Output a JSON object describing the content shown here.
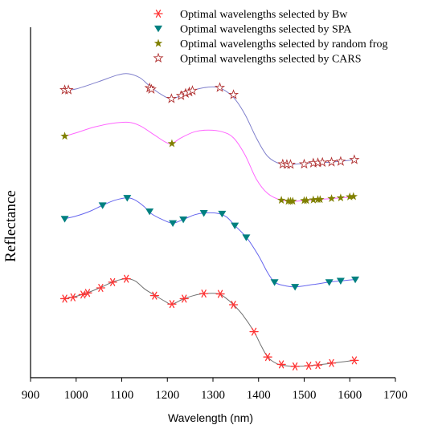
{
  "chart_data": {
    "type": "line",
    "title": "",
    "xlabel": "Wavelength (nm)",
    "ylabel": "Reflectance",
    "xlim": [
      900,
      1700
    ],
    "xticks": [
      900,
      1000,
      1100,
      1200,
      1300,
      1400,
      1500,
      1600,
      1700
    ],
    "grid": false,
    "legend_position": "top-right",
    "series": [
      {
        "name": "Optimal wavelengths selected by CARS",
        "color": "#8080cc",
        "marker": "open-star",
        "marker_color": "#b03030",
        "curve": [
          [
            975,
            0.832
          ],
          [
            1000,
            0.835
          ],
          [
            1050,
            0.857
          ],
          [
            1090,
            0.876
          ],
          [
            1115,
            0.88
          ],
          [
            1140,
            0.868
          ],
          [
            1160,
            0.845
          ],
          [
            1185,
            0.82
          ],
          [
            1210,
            0.806
          ],
          [
            1240,
            0.822
          ],
          [
            1270,
            0.836
          ],
          [
            1300,
            0.841
          ],
          [
            1320,
            0.835
          ],
          [
            1345,
            0.81
          ],
          [
            1370,
            0.76
          ],
          [
            1395,
            0.69
          ],
          [
            1420,
            0.635
          ],
          [
            1450,
            0.612
          ],
          [
            1480,
            0.612
          ],
          [
            1520,
            0.616
          ],
          [
            1560,
            0.618
          ],
          [
            1590,
            0.622
          ],
          [
            1610,
            0.625
          ]
        ],
        "points": [
          [
            975,
            0.832
          ],
          [
            983,
            0.832
          ],
          [
            1161,
            0.838
          ],
          [
            1165,
            0.834
          ],
          [
            1209,
            0.806
          ],
          [
            1230,
            0.815
          ],
          [
            1240,
            0.822
          ],
          [
            1248,
            0.826
          ],
          [
            1255,
            0.83
          ],
          [
            1315,
            0.839
          ],
          [
            1345,
            0.818
          ],
          [
            1453,
            0.612
          ],
          [
            1462,
            0.611
          ],
          [
            1470,
            0.611
          ],
          [
            1500,
            0.612
          ],
          [
            1520,
            0.615
          ],
          [
            1530,
            0.616
          ],
          [
            1540,
            0.617
          ],
          [
            1560,
            0.618
          ],
          [
            1580,
            0.62
          ],
          [
            1610,
            0.625
          ]
        ]
      },
      {
        "name": "Optimal wavelengths selected by random frog",
        "color": "#ff66ff",
        "marker": "filled-star",
        "marker_color": "#808000",
        "curve": [
          [
            975,
            0.695
          ],
          [
            1000,
            0.705
          ],
          [
            1040,
            0.722
          ],
          [
            1080,
            0.733
          ],
          [
            1115,
            0.736
          ],
          [
            1140,
            0.726
          ],
          [
            1170,
            0.7
          ],
          [
            1195,
            0.678
          ],
          [
            1210,
            0.673
          ],
          [
            1230,
            0.69
          ],
          [
            1260,
            0.708
          ],
          [
            1290,
            0.713
          ],
          [
            1320,
            0.708
          ],
          [
            1345,
            0.69
          ],
          [
            1370,
            0.64
          ],
          [
            1395,
            0.568
          ],
          [
            1420,
            0.525
          ],
          [
            1450,
            0.505
          ],
          [
            1480,
            0.502
          ],
          [
            1520,
            0.506
          ],
          [
            1560,
            0.51
          ],
          [
            1590,
            0.513
          ],
          [
            1610,
            0.516
          ]
        ],
        "points": [
          [
            975,
            0.695
          ],
          [
            1210,
            0.673
          ],
          [
            1450,
            0.505
          ],
          [
            1465,
            0.502
          ],
          [
            1470,
            0.502
          ],
          [
            1475,
            0.502
          ],
          [
            1500,
            0.504
          ],
          [
            1505,
            0.504
          ],
          [
            1520,
            0.506
          ],
          [
            1530,
            0.507
          ],
          [
            1535,
            0.507
          ],
          [
            1560,
            0.51
          ],
          [
            1580,
            0.512
          ],
          [
            1600,
            0.515
          ],
          [
            1608,
            0.516
          ]
        ]
      },
      {
        "name": "Optimal wavelengths selected by SPA",
        "color": "#6666ee",
        "marker": "triangle-down",
        "marker_color": "#008080",
        "curve": [
          [
            975,
            0.45
          ],
          [
            1000,
            0.458
          ],
          [
            1030,
            0.472
          ],
          [
            1058,
            0.49
          ],
          [
            1085,
            0.505
          ],
          [
            1112,
            0.512
          ],
          [
            1130,
            0.505
          ],
          [
            1150,
            0.485
          ],
          [
            1165,
            0.465
          ],
          [
            1190,
            0.447
          ],
          [
            1212,
            0.437
          ],
          [
            1235,
            0.448
          ],
          [
            1260,
            0.462
          ],
          [
            1280,
            0.467
          ],
          [
            1310,
            0.466
          ],
          [
            1330,
            0.455
          ],
          [
            1348,
            0.43
          ],
          [
            1375,
            0.392
          ],
          [
            1400,
            0.34
          ],
          [
            1420,
            0.29
          ],
          [
            1435,
            0.262
          ],
          [
            1455,
            0.252
          ],
          [
            1480,
            0.248
          ],
          [
            1520,
            0.255
          ],
          [
            1560,
            0.263
          ],
          [
            1590,
            0.267
          ],
          [
            1612,
            0.27
          ]
        ],
        "points": [
          [
            975,
            0.45
          ],
          [
            1058,
            0.49
          ],
          [
            1112,
            0.512
          ],
          [
            1161,
            0.472
          ],
          [
            1212,
            0.437
          ],
          [
            1235,
            0.448
          ],
          [
            1280,
            0.467
          ],
          [
            1320,
            0.465
          ],
          [
            1348,
            0.43
          ],
          [
            1373,
            0.395
          ],
          [
            1435,
            0.262
          ],
          [
            1480,
            0.248
          ],
          [
            1555,
            0.262
          ],
          [
            1580,
            0.266
          ],
          [
            1612,
            0.27
          ]
        ]
      },
      {
        "name": "Optimal wavelengths selected by Bw",
        "color": "#707070",
        "marker": "asterisk",
        "marker_color": "#ff3333",
        "curve": [
          [
            975,
            0.213
          ],
          [
            1000,
            0.22
          ],
          [
            1030,
            0.233
          ],
          [
            1060,
            0.25
          ],
          [
            1085,
            0.265
          ],
          [
            1112,
            0.272
          ],
          [
            1130,
            0.265
          ],
          [
            1150,
            0.242
          ],
          [
            1170,
            0.225
          ],
          [
            1195,
            0.205
          ],
          [
            1210,
            0.197
          ],
          [
            1235,
            0.212
          ],
          [
            1260,
            0.223
          ],
          [
            1280,
            0.228
          ],
          [
            1310,
            0.228
          ],
          [
            1325,
            0.218
          ],
          [
            1345,
            0.195
          ],
          [
            1365,
            0.165
          ],
          [
            1390,
            0.115
          ],
          [
            1405,
            0.075
          ],
          [
            1420,
            0.04
          ],
          [
            1440,
            0.02
          ],
          [
            1460,
            0.014
          ],
          [
            1480,
            0.012
          ],
          [
            1510,
            0.014
          ],
          [
            1540,
            0.018
          ],
          [
            1575,
            0.024
          ],
          [
            1610,
            0.03
          ]
        ],
        "points": [
          [
            975,
            0.213
          ],
          [
            993,
            0.217
          ],
          [
            1015,
            0.225
          ],
          [
            1025,
            0.23
          ],
          [
            1054,
            0.245
          ],
          [
            1080,
            0.262
          ],
          [
            1110,
            0.272
          ],
          [
            1172,
            0.222
          ],
          [
            1210,
            0.197
          ],
          [
            1237,
            0.213
          ],
          [
            1280,
            0.228
          ],
          [
            1316,
            0.227
          ],
          [
            1345,
            0.195
          ],
          [
            1390,
            0.115
          ],
          [
            1420,
            0.04
          ],
          [
            1450,
            0.018
          ],
          [
            1480,
            0.012
          ],
          [
            1510,
            0.014
          ],
          [
            1530,
            0.016
          ],
          [
            1560,
            0.022
          ],
          [
            1610,
            0.03
          ]
        ]
      }
    ],
    "legend_order": [
      3,
      2,
      1,
      0
    ]
  }
}
